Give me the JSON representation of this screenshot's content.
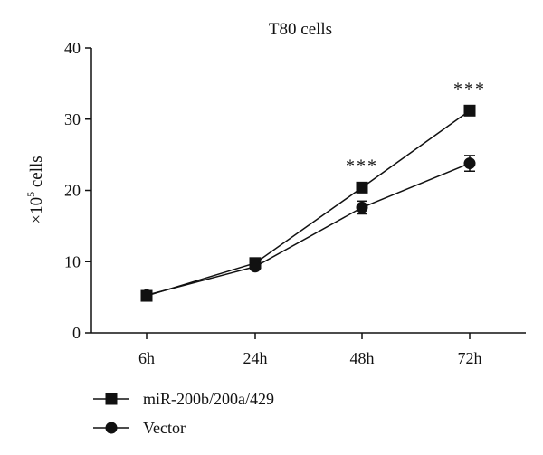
{
  "chart_data": {
    "type": "line",
    "title": "T80 cells",
    "ylabel_prefix": "×10",
    "ylabel_sup": "5",
    "ylabel_suffix": " cells",
    "xlabel": "",
    "categories": [
      "6h",
      "24h",
      "48h",
      "72h"
    ],
    "ylim": [
      0,
      40
    ],
    "yticks": [
      0,
      10,
      20,
      30,
      40
    ],
    "series": [
      {
        "name": "miR-200b/200a/429",
        "marker": "square",
        "values": [
          5.2,
          9.8,
          20.4,
          31.2
        ],
        "errors": [
          0.4,
          0.3,
          0.5,
          0.5
        ]
      },
      {
        "name": "Vector",
        "marker": "circle",
        "values": [
          5.3,
          9.3,
          17.6,
          23.8
        ],
        "errors": [
          0.4,
          0.3,
          0.9,
          1.1
        ]
      }
    ],
    "annotations": [
      {
        "x": "48h",
        "text": "***"
      },
      {
        "x": "72h",
        "text": "***"
      }
    ],
    "legend_position": "bottom-left",
    "grid": false
  }
}
